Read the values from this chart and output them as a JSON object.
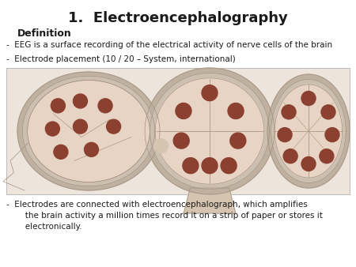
{
  "title": "1.  Electroencephalography",
  "title_fontsize": 13,
  "title_fontweight": "bold",
  "subtitle": "Definition",
  "subtitle_fontsize": 9,
  "subtitle_fontweight": "bold",
  "bullet1": "-  EEG is a surface recording of the electrical activity of nerve cells of the brain",
  "bullet2": "-  Electrode placement (10 / 20 – System, international)",
  "bullet3_line1": "-  Electrodes are connected with electroencephalograph, which amplifies",
  "bullet3_line2": "   the brain activity a million times record it on a strip of paper or stores it",
  "bullet3_line3": "   electronically.",
  "bg_color": "#ffffff",
  "text_color": "#1a1a1a",
  "image_bg": "#ede5dc",
  "body_fontsize": 7.5,
  "electrode_color": "#8B4030",
  "skull_outer_color": "#c8b8a5",
  "brain_fill_color": "#e8d4c4",
  "line_color": "#b09880"
}
